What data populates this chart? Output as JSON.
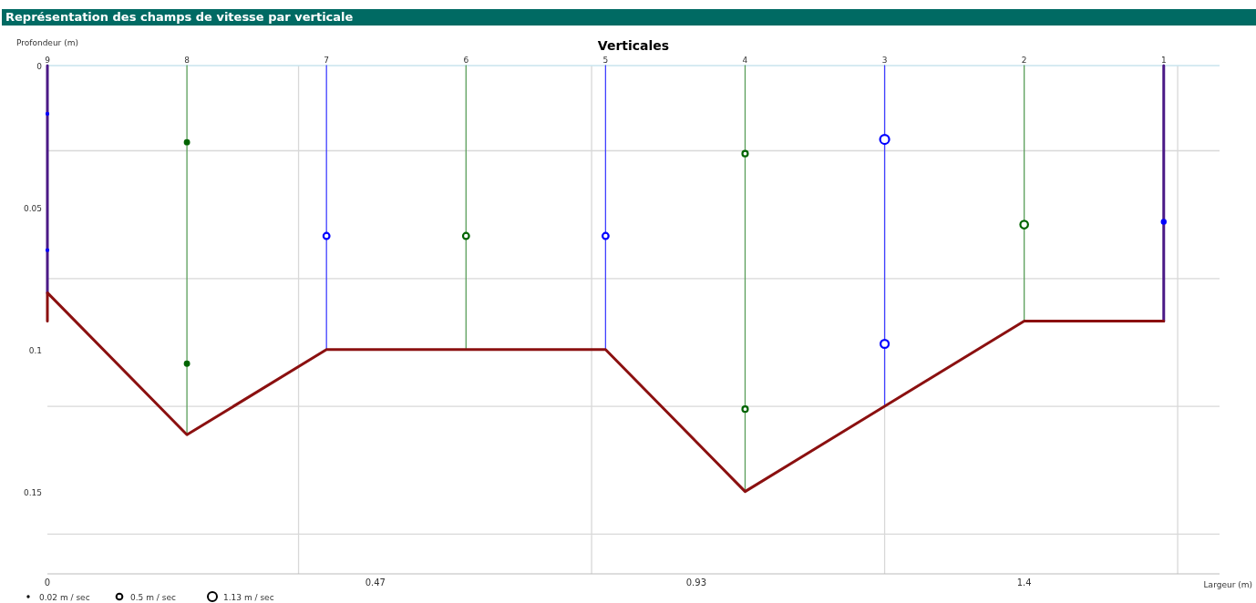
{
  "chart_data": {
    "type": "line",
    "title": "Représentation des champs de vitesse par verticale",
    "x2label": "Verticales",
    "ylabel": "Profondeur (m)",
    "xlabel": "Largeur (m)",
    "xlim": [
      0,
      1.68
    ],
    "xticks": [
      0,
      {
        "value": 0.36,
        "label": null
      },
      {
        "value": 0.47,
        "label": "0.47"
      },
      {
        "value": 0.78,
        "label": null
      },
      {
        "value": 0.93,
        "label": "0.93"
      },
      {
        "value": 1.2,
        "label": null
      },
      {
        "value": 1.4,
        "label": "1.4"
      },
      {
        "value": 1.62,
        "label": null
      }
    ],
    "annotations": [
      {
        "text": "9",
        "x": 0,
        "y": 0
      },
      {
        "text": "8",
        "x": 0.2,
        "y": 0
      },
      {
        "text": "7",
        "x": 0.4,
        "y": 0
      },
      {
        "text": "6",
        "x": 0.6,
        "y": 0
      },
      {
        "text": "5",
        "x": 0.8,
        "y": 0
      },
      {
        "text": "4",
        "x": 1.0,
        "y": 0
      },
      {
        "text": "3",
        "x": 1.2,
        "y": 0
      },
      {
        "text": "2",
        "x": 1.4,
        "y": 0
      },
      {
        "text": "1",
        "x": 1.6,
        "y": 0
      }
    ],
    "ylim": [
      0.179,
      0
    ],
    "yticks": [
      0,
      {
        "value": 0.03,
        "label": null
      },
      {
        "value": 0.05,
        "label": "0.05"
      },
      {
        "value": 0.075,
        "label": null
      },
      {
        "value": 0.1,
        "label": "0.1"
      },
      {
        "value": 0.12,
        "label": null
      },
      {
        "value": 0.15,
        "label": "0.15"
      },
      {
        "value": 0.165,
        "label": null
      }
    ],
    "grid": true,
    "size_legend": [
      {
        "value": 0.02,
        "label": "0.02 m / sec"
      },
      {
        "value": 0.5,
        "label": "0.5 m / sec"
      },
      {
        "value": 1.13,
        "label": "1.13 m / sec"
      }
    ],
    "series": [
      {
        "color": "#4b1a86",
        "x": [
          0,
          0
        ],
        "values": [
          0,
          0.08
        ]
      },
      {
        "color": "#5a9e5a",
        "x": [
          0.2,
          0.2
        ],
        "values": [
          0,
          0.13
        ]
      },
      {
        "color": "#4040ff",
        "x": [
          0.4,
          0.4
        ],
        "values": [
          0,
          0.1
        ]
      },
      {
        "color": "#5a9e5a",
        "x": [
          0.6,
          0.6
        ],
        "values": [
          0,
          0.1
        ]
      },
      {
        "color": "#4040ff",
        "x": [
          0.8,
          0.8
        ],
        "values": [
          0,
          0.1
        ]
      },
      {
        "color": "#5a9e5a",
        "x": [
          1.0,
          1.0
        ],
        "values": [
          0,
          0.15
        ]
      },
      {
        "color": "#4040ff",
        "x": [
          1.2,
          1.2
        ],
        "values": [
          0,
          0.12
        ]
      },
      {
        "color": "#5a9e5a",
        "x": [
          1.4,
          1.4
        ],
        "values": [
          0,
          0.09
        ]
      },
      {
        "color": "#4b1a86",
        "x": [
          1.6,
          1.6
        ],
        "values": [
          0,
          0.09
        ]
      },
      {
        "color": "#8b1010",
        "x": [
          0,
          0,
          0.2,
          0.4,
          0.6,
          0.8,
          1.0,
          1.2,
          1.4,
          1.6
        ],
        "values": [
          0.09,
          0.08,
          0.13,
          0.1,
          0.1,
          0.1,
          0.15,
          0.12,
          0.09,
          0.09
        ]
      },
      {
        "type": "bubble",
        "color": "#0000ff",
        "x": [
          0,
          0,
          0.4,
          0.8,
          1.2,
          1.2,
          1.6
        ],
        "values": [
          0.017,
          0.065,
          0.06,
          0.06,
          0.026,
          0.098,
          0.055
        ],
        "sizes": [
          0.05,
          0.05,
          0.5,
          0.5,
          1.13,
          0.9,
          0.2
        ]
      },
      {
        "type": "bubble",
        "color": "#006400",
        "x": [
          0.2,
          0.2,
          0.6,
          1.0,
          1.0,
          1.4
        ],
        "values": [
          0.027,
          0.105,
          0.06,
          0.031,
          0.121,
          0.056
        ],
        "sizes": [
          0.25,
          0.25,
          0.5,
          0.4,
          0.4,
          0.8
        ]
      }
    ]
  }
}
